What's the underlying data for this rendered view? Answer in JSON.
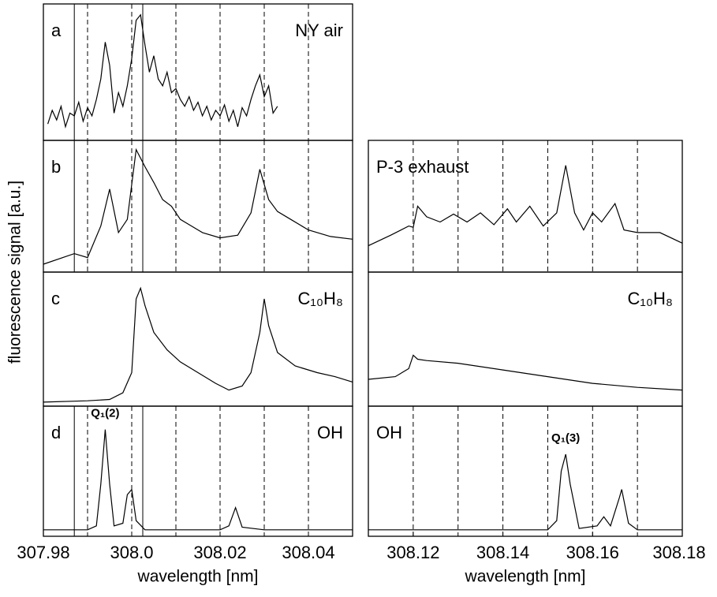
{
  "chart_data": [
    {
      "type": "line",
      "label": "a",
      "annotation": "NY air",
      "ylabel": "fluorescence signal [a.u.]",
      "color": "#000000",
      "xlim": [
        307.98,
        308.05
      ],
      "ylim": [
        0,
        100
      ],
      "dashed_lines": [
        307.99,
        308.0,
        308.01,
        308.02,
        308.03,
        308.04
      ],
      "solid_lines": [
        307.987,
        308.0025
      ],
      "x": [
        307.981,
        307.982,
        307.983,
        307.984,
        307.985,
        307.986,
        307.987,
        307.988,
        307.989,
        307.99,
        307.991,
        307.992,
        307.993,
        307.994,
        307.995,
        307.996,
        307.997,
        307.998,
        307.999,
        308.0,
        308.001,
        308.002,
        308.003,
        308.004,
        308.005,
        308.006,
        308.007,
        308.008,
        308.009,
        308.01,
        308.011,
        308.012,
        308.013,
        308.014,
        308.015,
        308.016,
        308.017,
        308.018,
        308.019,
        308.02,
        308.021,
        308.022,
        308.023,
        308.024,
        308.025,
        308.026,
        308.027,
        308.028,
        308.029,
        308.03,
        308.031,
        308.032,
        308.033
      ],
      "values": [
        12,
        22,
        15,
        25,
        10,
        20,
        18,
        28,
        14,
        24,
        18,
        30,
        45,
        72,
        55,
        20,
        35,
        25,
        40,
        60,
        88,
        92,
        70,
        50,
        62,
        45,
        40,
        50,
        35,
        38,
        30,
        25,
        32,
        22,
        28,
        18,
        25,
        15,
        22,
        18,
        26,
        14,
        22,
        10,
        24,
        18,
        30,
        40,
        48,
        32,
        40,
        20,
        25
      ]
    },
    {
      "type": "line",
      "label": "b",
      "color": "#000000",
      "xlim": [
        307.98,
        308.05
      ],
      "ylim": [
        0,
        100
      ],
      "dashed_lines": [
        307.99,
        308.0,
        308.01,
        308.02,
        308.03,
        308.04
      ],
      "solid_lines": [
        307.987,
        308.0025
      ],
      "x": [
        307.98,
        307.987,
        307.99,
        307.993,
        307.995,
        307.997,
        307.999,
        308.001,
        308.003,
        308.005,
        308.007,
        308.009,
        308.011,
        308.013,
        308.016,
        308.02,
        308.024,
        308.027,
        308.029,
        308.031,
        308.033,
        308.036,
        308.04,
        308.045,
        308.05
      ],
      "values": [
        6,
        14,
        11,
        35,
        63,
        30,
        40,
        93,
        80,
        68,
        55,
        50,
        40,
        36,
        30,
        26,
        28,
        45,
        78,
        55,
        46,
        40,
        32,
        27,
        25
      ]
    },
    {
      "type": "line",
      "label": "c",
      "annotation": "C₁₀H₈",
      "color": "#000000",
      "xlim": [
        307.98,
        308.05
      ],
      "ylim": [
        0,
        100
      ],
      "x": [
        307.98,
        307.99,
        307.995,
        307.998,
        308.0,
        308.001,
        308.002,
        308.003,
        308.005,
        308.008,
        308.011,
        308.015,
        308.019,
        308.022,
        308.025,
        308.027,
        308.029,
        308.03,
        308.031,
        308.033,
        308.037,
        308.042,
        308.046,
        308.05
      ],
      "values": [
        3,
        4,
        5,
        10,
        25,
        80,
        88,
        75,
        55,
        42,
        33,
        25,
        17,
        12,
        15,
        25,
        55,
        80,
        60,
        40,
        30,
        25,
        22,
        18
      ]
    },
    {
      "type": "line",
      "label": "d",
      "annotation": "OH",
      "peak_label": "Q₁(2)",
      "color": "#000000",
      "xlim": [
        307.98,
        308.05
      ],
      "ylim": [
        0,
        100
      ],
      "dashed_lines": [
        307.99,
        308.0,
        308.01,
        308.02,
        308.03,
        308.04
      ],
      "solid_lines": [
        307.987,
        308.0025
      ],
      "xticks": [
        307.98,
        {
          "value": 308,
          "label": "308.0"
        },
        308.02,
        308.04
      ],
      "xlabel": "wavelength [nm]",
      "x": [
        307.98,
        307.985,
        307.99,
        307.992,
        307.993,
        307.994,
        307.995,
        307.996,
        307.998,
        307.999,
        308.0,
        308.001,
        308.003,
        308.01,
        308.02,
        308.022,
        308.0235,
        308.025,
        308.03,
        308.04,
        308.05
      ],
      "values": [
        5,
        5,
        5,
        8,
        40,
        82,
        40,
        8,
        10,
        32,
        36,
        12,
        5,
        5,
        5,
        8,
        22,
        7,
        5,
        5,
        5
      ]
    },
    {
      "type": "line",
      "annotation": "P-3 exhaust",
      "color": "#000000",
      "xlim": [
        308.11,
        308.18
      ],
      "ylim": [
        0,
        100
      ],
      "dashed_lines": [
        308.12,
        308.13,
        308.14,
        308.15,
        308.16,
        308.17
      ],
      "x": [
        308.11,
        308.115,
        308.119,
        308.12,
        308.121,
        308.123,
        308.126,
        308.129,
        308.132,
        308.135,
        308.138,
        308.141,
        308.143,
        308.146,
        308.149,
        308.152,
        308.154,
        308.156,
        308.158,
        308.16,
        308.162,
        308.165,
        308.167,
        308.17,
        308.175,
        308.18
      ],
      "values": [
        20,
        28,
        35,
        34,
        50,
        42,
        38,
        44,
        38,
        45,
        36,
        48,
        38,
        50,
        35,
        45,
        81,
        45,
        32,
        45,
        38,
        52,
        32,
        30,
        30,
        22
      ]
    },
    {
      "type": "line",
      "annotation": "C₁₀H₈",
      "color": "#000000",
      "xlim": [
        308.11,
        308.18
      ],
      "ylim": [
        0,
        100
      ],
      "x": [
        308.11,
        308.116,
        308.119,
        308.12,
        308.121,
        308.123,
        308.13,
        308.14,
        308.15,
        308.16,
        308.17,
        308.18
      ],
      "values": [
        20,
        22,
        28,
        38,
        35,
        34,
        32,
        27,
        22,
        17,
        14,
        12
      ]
    },
    {
      "type": "line",
      "annotation": "OH",
      "peak_label": "Q₁(3)",
      "color": "#000000",
      "xlim": [
        308.11,
        308.18
      ],
      "ylim": [
        0,
        100
      ],
      "dashed_lines": [
        308.12,
        308.13,
        308.14,
        308.15,
        308.16,
        308.17
      ],
      "xticks": [
        308.12,
        308.14,
        308.16,
        308.18
      ],
      "xlabel": "wavelength [nm]",
      "x": [
        308.11,
        308.13,
        308.15,
        308.152,
        308.153,
        308.154,
        308.155,
        308.157,
        308.161,
        308.1625,
        308.164,
        308.166,
        308.1665,
        308.168,
        308.17,
        308.18
      ],
      "values": [
        5,
        5,
        5,
        12,
        50,
        63,
        40,
        6,
        8,
        15,
        8,
        30,
        36,
        10,
        5,
        5
      ]
    }
  ]
}
